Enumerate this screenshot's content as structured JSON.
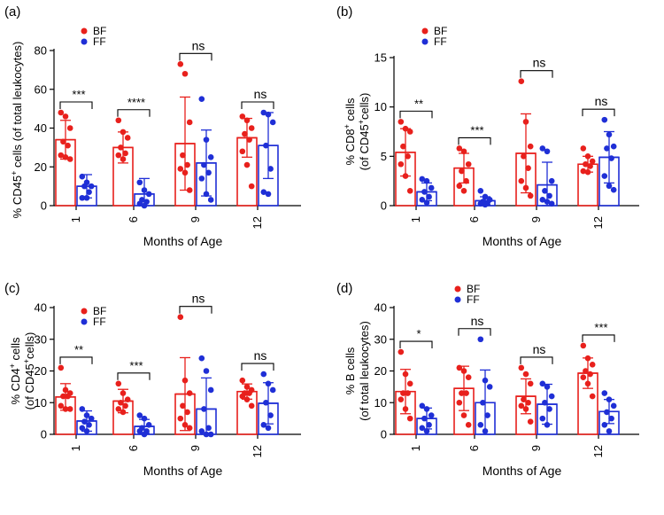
{
  "colors": {
    "BF": "#e8201c",
    "FF": "#1f2fd6",
    "axis": "#000000"
  },
  "chart_data": [
    {
      "panel": "(a)",
      "type": "bar",
      "ylabel_html": "% CD45<sup>+</sup> cells (of total leukocytes)",
      "ylabel_parts": [
        [
          "% CD45",
          ""
        ],
        [
          "+",
          "sup"
        ],
        [
          " cells (of total leukocytes)",
          ""
        ]
      ],
      "xlabel": "Months of Age",
      "categories": [
        "1",
        "6",
        "9",
        "12"
      ],
      "ylim": [
        0,
        80
      ],
      "yticks": [
        0,
        20,
        40,
        60,
        80
      ],
      "legend": [
        "BF",
        "FF"
      ],
      "legend_position": "top-left",
      "series": [
        {
          "name": "BF",
          "means": [
            34,
            30,
            32,
            35
          ],
          "sd": [
            10,
            8,
            24,
            10
          ],
          "points": [
            [
              48,
              46,
              40,
              33,
              31,
              26,
              25,
              24
            ],
            [
              44,
              38,
              35,
              30,
              27,
              26,
              24
            ],
            [
              73,
              68,
              43,
              26,
              21,
              19,
              17,
              8
            ],
            [
              46,
              44,
              40,
              37,
              34,
              28,
              21,
              10
            ]
          ]
        },
        {
          "name": "FF",
          "means": [
            10,
            6,
            22,
            31
          ],
          "sd": [
            6,
            8,
            17,
            17
          ],
          "points": [
            [
              15,
              12,
              10,
              10,
              7,
              4,
              4
            ],
            [
              12,
              8,
              6,
              3,
              2,
              1,
              0
            ],
            [
              55,
              34,
              25,
              21,
              17,
              14,
              6,
              3
            ],
            [
              48,
              47,
              43,
              31,
              19,
              7,
              6
            ]
          ]
        }
      ],
      "significance": [
        "***",
        "****",
        "ns",
        "ns"
      ]
    },
    {
      "panel": "(b)",
      "type": "bar",
      "ylabel_html": "% CD8<sup>+</sup> cells<br>(of CD45<sup>+</sup>cells)",
      "ylabel_parts": [
        [
          "% CD8",
          ""
        ],
        [
          "+",
          "sup"
        ],
        [
          " cells",
          ""
        ]
      ],
      "ylabel_parts2": [
        [
          "(of CD45",
          ""
        ],
        [
          "+",
          "sup"
        ],
        [
          "cells)",
          ""
        ]
      ],
      "xlabel": "Months of Age",
      "categories": [
        "1",
        "6",
        "9",
        "12"
      ],
      "ylim": [
        0,
        15
      ],
      "yticks": [
        0,
        5,
        10,
        15
      ],
      "legend": [
        "BF",
        "FF"
      ],
      "legend_position": "top-left",
      "series": [
        {
          "name": "BF",
          "means": [
            5.4,
            3.8,
            5.3,
            4.2
          ],
          "sd": [
            2.4,
            1.5,
            4.0,
            0.8
          ],
          "points": [
            [
              8.5,
              7.8,
              7.5,
              6.0,
              5.0,
              4.2,
              3.0,
              1.5
            ],
            [
              5.8,
              5.5,
              4.2,
              3.5,
              2.5,
              2.0,
              1.5
            ],
            [
              12.6,
              8.5,
              6.0,
              5.0,
              3.8,
              2.5,
              1.8,
              1.0
            ],
            [
              5.8,
              5.0,
              4.5,
              4.2,
              4.0,
              3.5,
              3.4
            ]
          ]
        },
        {
          "name": "FF",
          "means": [
            1.4,
            0.5,
            2.1,
            4.9
          ],
          "sd": [
            0.9,
            0.4,
            2.3,
            2.6
          ],
          "points": [
            [
              2.7,
              2.5,
              1.8,
              1.4,
              0.9,
              0.6,
              0.3
            ],
            [
              1.5,
              0.9,
              0.6,
              0.4,
              0.3,
              0.2,
              0.1
            ],
            [
              5.8,
              5.5,
              2.5,
              1.5,
              1.0,
              0.6,
              0.4,
              0.2
            ],
            [
              8.7,
              7.2,
              6.0,
              5.8,
              4.8,
              3.0,
              2.0,
              1.6
            ]
          ]
        }
      ],
      "significance": [
        "**",
        "***",
        "ns",
        "ns"
      ]
    },
    {
      "panel": "(c)",
      "type": "bar",
      "ylabel_html": "% CD4<sup>+</sup> cells<br>(of CD45<sup>+</sup>cells)",
      "ylabel_parts": [
        [
          "% CD4",
          ""
        ],
        [
          "+",
          "sup"
        ],
        [
          " cells",
          ""
        ]
      ],
      "ylabel_parts2": [
        [
          "(of CD45",
          ""
        ],
        [
          "+",
          "sup"
        ],
        [
          "cells)",
          ""
        ]
      ],
      "xlabel": "Months of Age",
      "categories": [
        "1",
        "6",
        "9",
        "12"
      ],
      "ylim": [
        0,
        40
      ],
      "yticks": [
        0,
        10,
        20,
        30,
        40
      ],
      "legend": [
        "BF",
        "FF"
      ],
      "legend_position": "top-left",
      "series": [
        {
          "name": "BF",
          "means": [
            11.8,
            10.5,
            12.7,
            13.5
          ],
          "sd": [
            4.2,
            3.7,
            11.5,
            2.4
          ],
          "points": [
            [
              21,
              14,
              13,
              12,
              12,
              9,
              8,
              8
            ],
            [
              16,
              13,
              11,
              10,
              9,
              8,
              7
            ],
            [
              37,
              17,
              13,
              9,
              7,
              5,
              3,
              2
            ],
            [
              17,
              15,
              14,
              13,
              13,
              12,
              11,
              9
            ]
          ]
        },
        {
          "name": "FF",
          "means": [
            4.2,
            2.5,
            8.0,
            9.8
          ],
          "sd": [
            3.2,
            2.2,
            9.8,
            6.5
          ],
          "points": [
            [
              8,
              6,
              5,
              4,
              3,
              2,
              1
            ],
            [
              6,
              5,
              3,
              2,
              1,
              1,
              0
            ],
            [
              24,
              20,
              14,
              8,
              2,
              1,
              0,
              0
            ],
            [
              19,
              16,
              14,
              10,
              6,
              3,
              2
            ]
          ]
        }
      ],
      "significance": [
        "**",
        "***",
        "ns",
        "ns"
      ]
    },
    {
      "panel": "(d)",
      "type": "bar",
      "ylabel_html": "% B cells<br>(of total leukocytes)",
      "ylabel_parts": [
        [
          "% B cells",
          ""
        ]
      ],
      "ylabel_parts2": [
        [
          "(of total leukocytes)",
          ""
        ]
      ],
      "xlabel": "Months of Age",
      "categories": [
        "1",
        "6",
        "9",
        "12"
      ],
      "ylim": [
        0,
        40
      ],
      "yticks": [
        0,
        10,
        20,
        30,
        40
      ],
      "legend": [
        "BF",
        "FF"
      ],
      "legend_position": "top-left",
      "series": [
        {
          "name": "BF",
          "means": [
            13.5,
            14.5,
            12.0,
            19.3
          ],
          "sd": [
            7.0,
            7.0,
            5.5,
            4.8
          ],
          "points": [
            [
              26,
              19,
              16,
              13,
              13,
              11,
              8,
              5
            ],
            [
              21,
              20,
              18,
              13,
              13,
              10,
              6,
              3
            ],
            [
              21,
              19,
              16,
              11,
              10,
              9,
              8,
              4
            ],
            [
              28,
              24,
              22,
              20,
              19,
              18,
              16,
              12
            ]
          ]
        },
        {
          "name": "FF",
          "means": [
            5.0,
            10.0,
            9.5,
            7.2
          ],
          "sd": [
            3.3,
            10.3,
            6.3,
            3.8
          ],
          "points": [
            [
              9,
              8,
              6,
              5,
              3,
              2,
              1
            ],
            [
              30,
              17,
              15,
              10,
              6,
              3,
              1
            ],
            [
              16,
              15,
              12,
              10,
              8,
              5,
              3
            ],
            [
              13,
              11,
              9,
              7,
              5,
              3,
              1
            ]
          ]
        }
      ],
      "significance": [
        "*",
        "ns",
        "ns",
        "***"
      ]
    }
  ]
}
